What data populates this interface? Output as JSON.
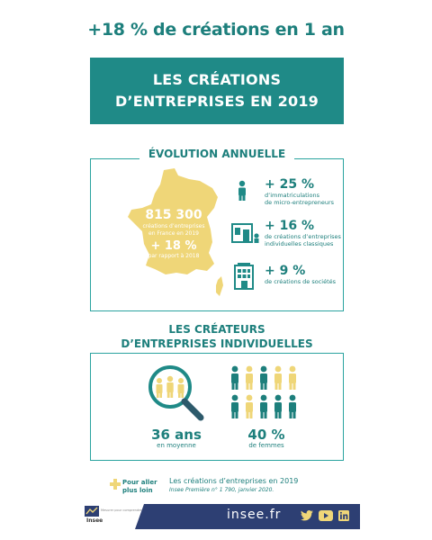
{
  "header": {
    "headline": "+18 % de créations en 1 an",
    "banner_line1": "LES CRÉATIONS",
    "banner_line2": "D’ENTREPRISES EN 2019"
  },
  "annual": {
    "title": "ÉVOLUTION ANNUELLE",
    "total": "815 300",
    "total_caption_1": "créations d’entreprises",
    "total_caption_2": "en France en 2019",
    "growth": "+ 18 %",
    "growth_caption": "par rapport à 2018",
    "stats": [
      {
        "value": "+ 25 %",
        "label_1": "d’immatriculations",
        "label_2": "de micro-entrepreneurs"
      },
      {
        "value": "+ 16 %",
        "label_1": "de créations d’entreprises",
        "label_2": "individuelles classiques"
      },
      {
        "value": "+ 9 %",
        "label_1": "de créations de sociétés",
        "label_2": ""
      }
    ]
  },
  "creators": {
    "title_line1": "LES CRÉATEURS",
    "title_line2": "D’ENTREPRISES INDIVIDUELLES",
    "age_value": "36 ans",
    "age_label": "en moyenne",
    "women_value": "40 %",
    "women_label": "de femmes",
    "women_share": 0.4
  },
  "more": {
    "label_1": "Pour aller",
    "label_2": "plus loin",
    "ref_title": "Les créations d’entreprises en 2019",
    "ref_sub": "Insee Première n° 1 790, janvier 2020."
  },
  "footer": {
    "logo_text": "Insee",
    "tagline": "Mesurer pour comprendre",
    "site": "insee.fr"
  },
  "colors": {
    "teal": "#1f8a87",
    "dark_teal": "#1d7f7c",
    "yellow": "#efd678",
    "navy": "#2d3f73"
  }
}
